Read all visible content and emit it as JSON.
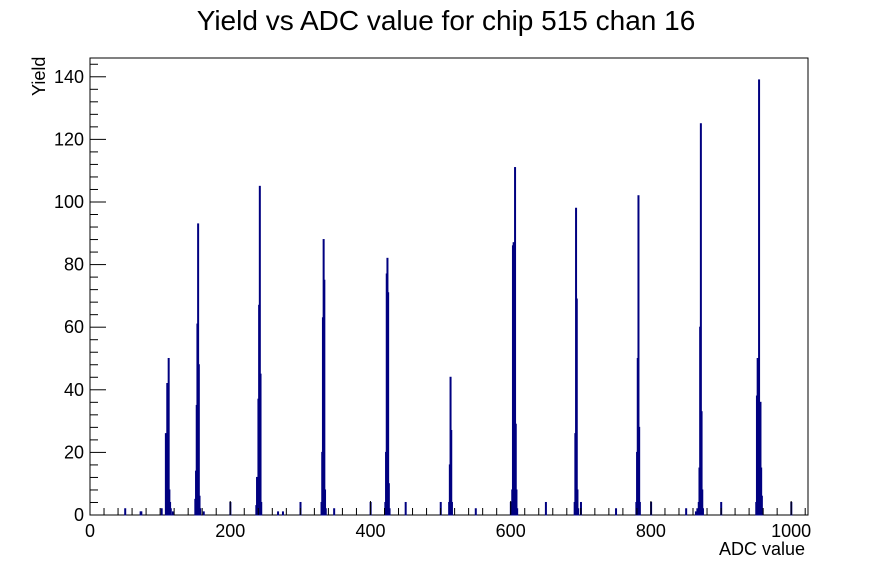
{
  "chart_data": {
    "type": "bar",
    "title": "Yield vs ADC value for chip 515 chan 16",
    "xlabel": "ADC value",
    "ylabel": "Yield",
    "xlim": [
      0,
      1024
    ],
    "ylim": [
      0,
      146
    ],
    "x_ticks": [
      0,
      200,
      400,
      600,
      800,
      1000
    ],
    "y_ticks": [
      0,
      20,
      40,
      60,
      80,
      100,
      120,
      140
    ],
    "grid": false,
    "series": [
      {
        "color": "#000080",
        "points": [
          [
            50,
            2
          ],
          [
            72,
            1
          ],
          [
            73,
            1
          ],
          [
            102,
            2
          ],
          [
            108,
            26
          ],
          [
            110,
            42
          ],
          [
            111,
            42
          ],
          [
            112,
            50
          ],
          [
            113,
            8
          ],
          [
            114,
            4
          ],
          [
            115,
            2
          ],
          [
            118,
            1
          ],
          [
            150,
            5
          ],
          [
            151,
            14
          ],
          [
            152,
            35
          ],
          [
            153,
            61
          ],
          [
            154,
            93
          ],
          [
            155,
            48
          ],
          [
            156,
            6
          ],
          [
            157,
            2
          ],
          [
            162,
            1
          ],
          [
            200,
            4
          ],
          [
            237,
            3
          ],
          [
            238,
            12
          ],
          [
            239,
            11
          ],
          [
            240,
            37
          ],
          [
            241,
            67
          ],
          [
            242,
            105
          ],
          [
            243,
            45
          ],
          [
            244,
            4
          ],
          [
            268,
            1
          ],
          [
            275,
            1
          ],
          [
            300,
            4
          ],
          [
            330,
            4
          ],
          [
            331,
            20
          ],
          [
            332,
            63
          ],
          [
            333,
            88
          ],
          [
            334,
            75
          ],
          [
            335,
            8
          ],
          [
            336,
            2
          ],
          [
            348,
            2
          ],
          [
            400,
            4
          ],
          [
            421,
            4
          ],
          [
            422,
            20
          ],
          [
            423,
            77
          ],
          [
            424,
            82
          ],
          [
            425,
            71
          ],
          [
            426,
            10
          ],
          [
            427,
            2
          ],
          [
            450,
            4
          ],
          [
            500,
            4
          ],
          [
            512,
            4
          ],
          [
            513,
            16
          ],
          [
            514,
            44
          ],
          [
            515,
            27
          ],
          [
            516,
            4
          ],
          [
            550,
            2
          ],
          [
            600,
            4
          ],
          [
            602,
            8
          ],
          [
            603,
            86
          ],
          [
            604,
            87
          ],
          [
            605,
            29
          ],
          [
            606,
            111
          ],
          [
            607,
            29
          ],
          [
            608,
            8
          ],
          [
            609,
            2
          ],
          [
            650,
            4
          ],
          [
            691,
            4
          ],
          [
            692,
            26
          ],
          [
            693,
            98
          ],
          [
            694,
            69
          ],
          [
            695,
            8
          ],
          [
            696,
            2
          ],
          [
            700,
            4
          ],
          [
            750,
            2
          ],
          [
            779,
            4
          ],
          [
            780,
            20
          ],
          [
            781,
            50
          ],
          [
            782,
            102
          ],
          [
            783,
            28
          ],
          [
            784,
            4
          ],
          [
            800,
            4
          ],
          [
            850,
            2
          ],
          [
            864,
            1
          ],
          [
            866,
            2
          ],
          [
            868,
            4
          ],
          [
            869,
            15
          ],
          [
            870,
            60
          ],
          [
            871,
            125
          ],
          [
            872,
            33
          ],
          [
            873,
            8
          ],
          [
            874,
            2
          ],
          [
            900,
            4
          ],
          [
            950,
            4
          ],
          [
            951,
            38
          ],
          [
            952,
            50
          ],
          [
            953,
            13
          ],
          [
            954,
            139
          ],
          [
            955,
            35
          ],
          [
            956,
            36
          ],
          [
            957,
            15
          ],
          [
            958,
            6
          ],
          [
            959,
            2
          ],
          [
            1000,
            4
          ]
        ]
      }
    ]
  }
}
